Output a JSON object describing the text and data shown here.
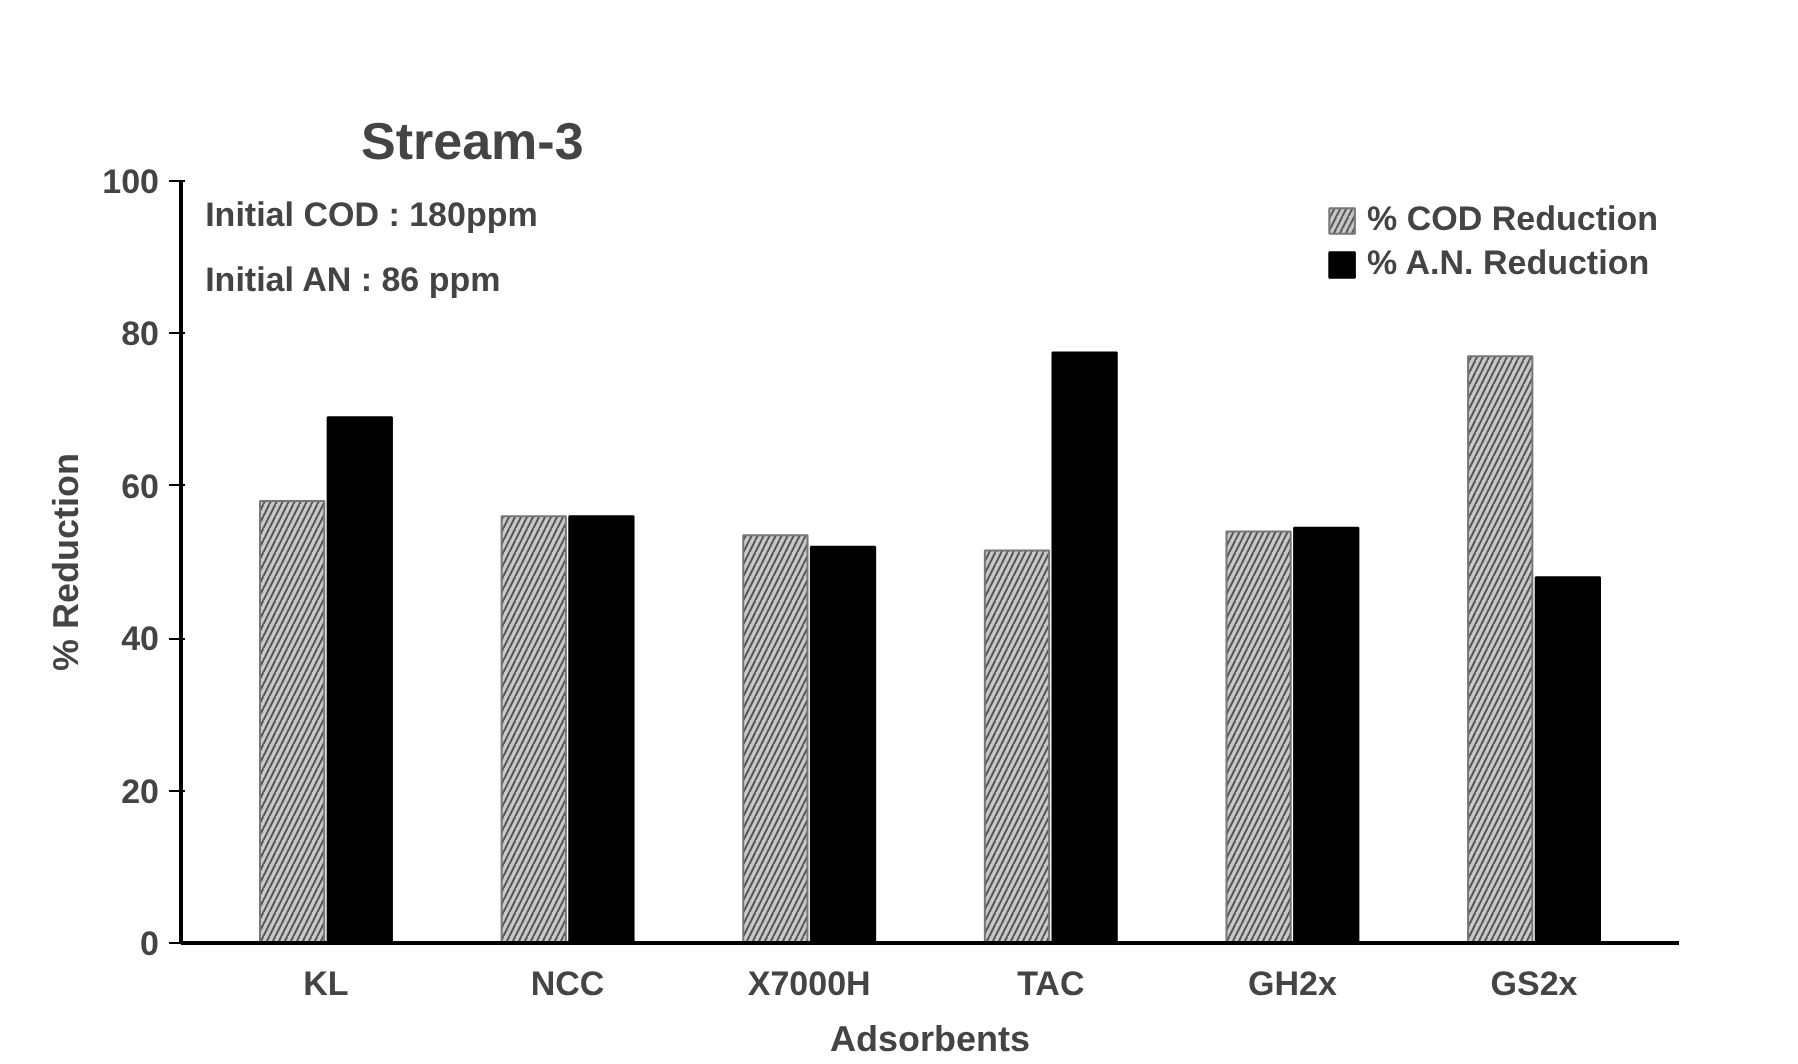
{
  "chart_data": {
    "type": "bar",
    "title": "Stream-3",
    "xlabel": "Adsorbents",
    "ylabel": "% Reduction",
    "categories": [
      "KL",
      "NCC",
      "X7000H",
      "TAC",
      "GH2x",
      "GS2x"
    ],
    "series": [
      {
        "name": "% COD Reduction",
        "color": "#c8c8c8",
        "values": [
          58,
          56,
          53.5,
          51.5,
          54,
          77
        ]
      },
      {
        "name": "% A.N. Reduction",
        "color": "#000000",
        "values": [
          69,
          56,
          52,
          77.5,
          54.5,
          48
        ]
      }
    ],
    "ylim": [
      0,
      100
    ],
    "yticks": [
      0,
      20,
      40,
      60,
      80,
      100
    ],
    "grid": false,
    "legend": "top right",
    "annotations": [
      "Initial COD : 180ppm",
      "Initial AN : 86 ppm"
    ]
  }
}
